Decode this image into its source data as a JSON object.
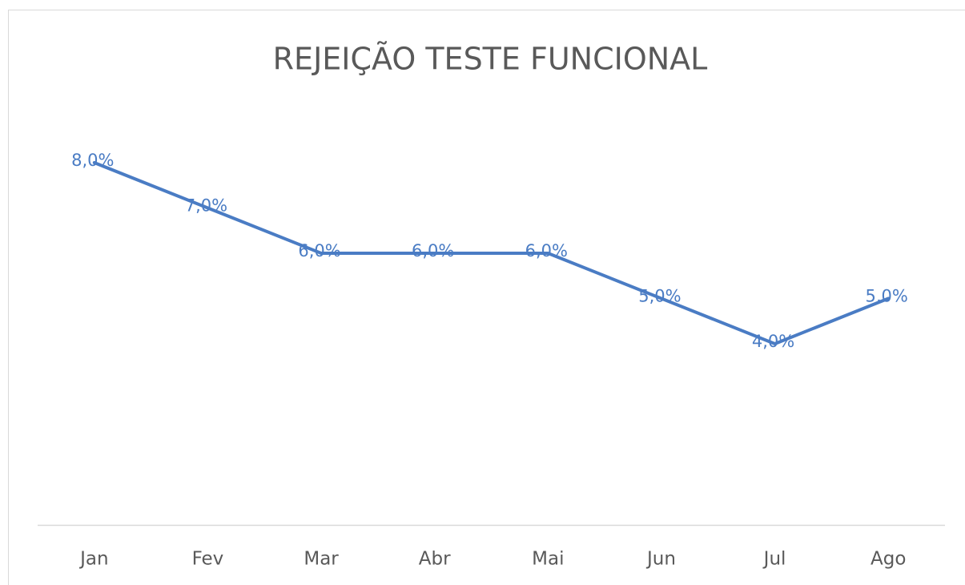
{
  "chart_data": {
    "type": "line",
    "title": "REJEIÇÃO TESTE FUNCIONAL",
    "categories": [
      "Jan",
      "Fev",
      "Mar",
      "Abr",
      "Mai",
      "Jun",
      "Jul",
      "Ago"
    ],
    "series": [
      {
        "color": "#4a7cc4",
        "values": [
          8,
          7,
          6,
          6,
          6,
          5,
          4,
          5
        ],
        "value_labels": [
          "8,0%",
          "7,0%",
          "6,0%",
          "6,0%",
          "6,0%",
          "5,0%",
          "4,0%",
          "5,0%"
        ]
      }
    ],
    "ylim": [
      0,
      10
    ],
    "grid": false
  }
}
